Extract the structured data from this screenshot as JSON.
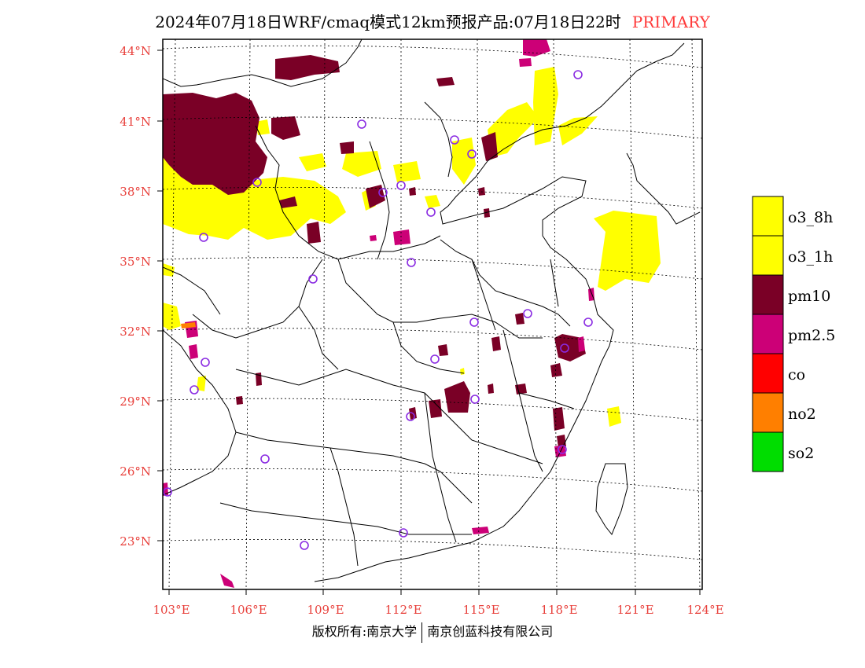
{
  "header": {
    "title": "2024年07月18日WRF/cmaq模式12km预报产品:07月18日22时",
    "tag": "PRIMARY"
  },
  "map": {
    "lat_labels": [
      "44°N",
      "41°N",
      "38°N",
      "35°N",
      "32°N",
      "29°N",
      "26°N",
      "23°N"
    ],
    "lon_labels": [
      "103°E",
      "106°E",
      "109°E",
      "112°E",
      "115°E",
      "118°E",
      "121°E",
      "124°E"
    ],
    "label_color": "#e8413c"
  },
  "legend": {
    "items": [
      {
        "label": "o3_8h",
        "color": "#ffff00"
      },
      {
        "label": "o3_1h",
        "color": "#ffff00"
      },
      {
        "label": "pm10",
        "color": "#7a0026"
      },
      {
        "label": "pm2.5",
        "color": "#cc0077"
      },
      {
        "label": "co",
        "color": "#ff0000"
      },
      {
        "label": "no2",
        "color": "#ff7f00"
      },
      {
        "label": "so2",
        "color": "#00dd00"
      }
    ]
  },
  "footer": {
    "left": "版权所有:南京大学",
    "right": "南京创蓝科技有限公司"
  }
}
